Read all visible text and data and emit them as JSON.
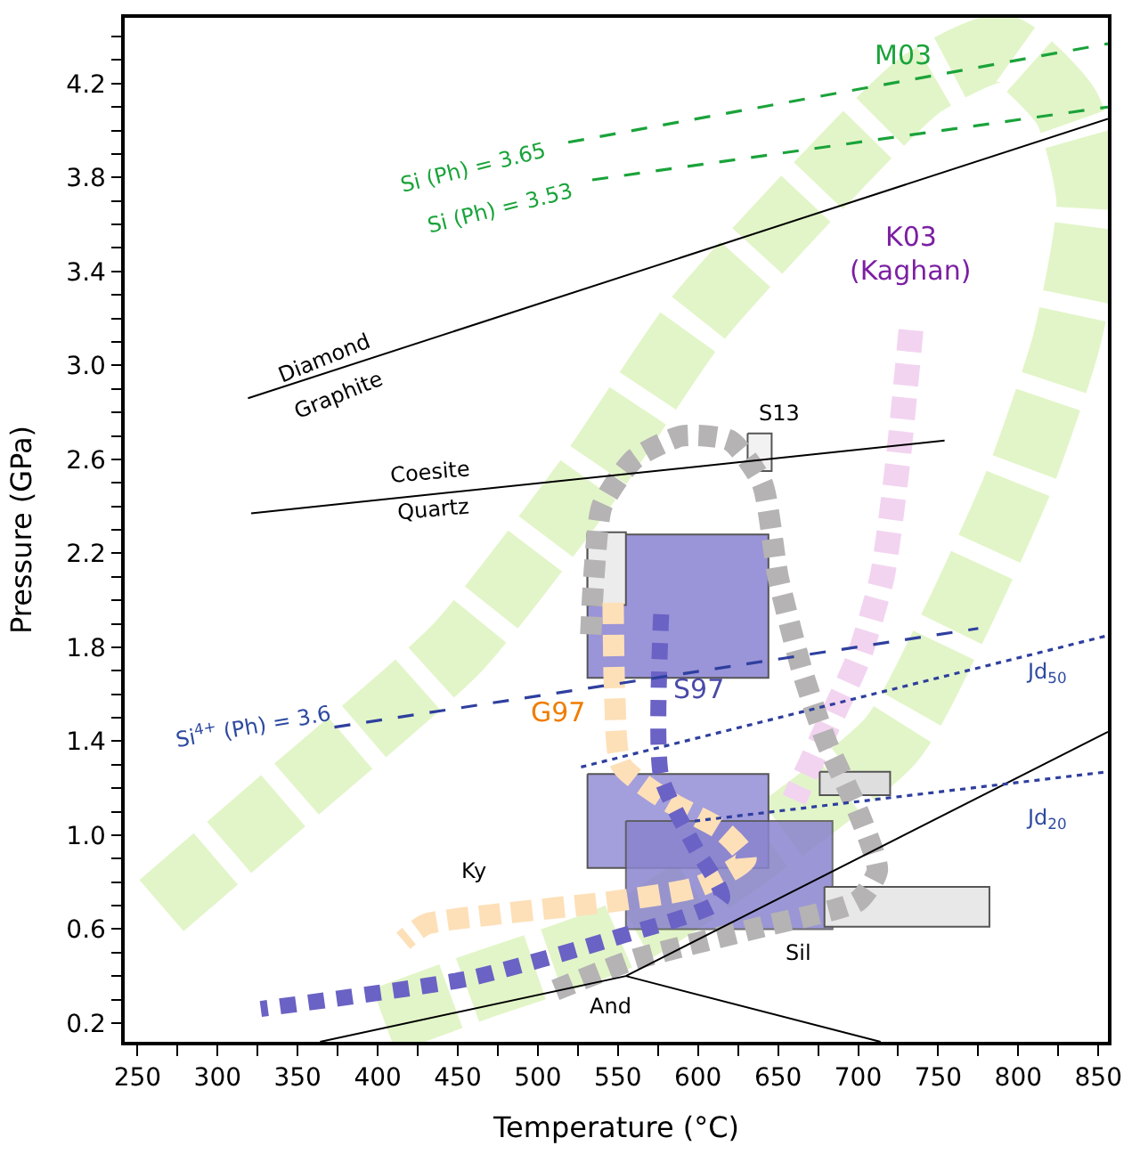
{
  "chart_data": {
    "type": "line",
    "xlabel": "Temperature (°C)",
    "ylabel": "Pressure (GPa)",
    "xlim": [
      242,
      856
    ],
    "ylim": [
      0.12,
      4.48
    ],
    "xticks": [
      250,
      {
        "value": 275,
        "label": null
      },
      300,
      {
        "value": 325,
        "label": null
      },
      350,
      {
        "value": 375,
        "label": null
      },
      400,
      {
        "value": 425,
        "label": null
      },
      450,
      {
        "value": 475,
        "label": null
      },
      500,
      {
        "value": 525,
        "label": null
      },
      550,
      {
        "value": 575,
        "label": null
      },
      600,
      {
        "value": 625,
        "label": null
      },
      650,
      {
        "value": 675,
        "label": null
      },
      700,
      {
        "value": 725,
        "label": null
      },
      750,
      {
        "value": 775,
        "label": null
      },
      800,
      {
        "value": 825,
        "label": null
      },
      850
    ],
    "yticks": [
      0.2,
      {
        "value": 0.3,
        "label": null
      },
      {
        "value": 0.4,
        "label": null
      },
      {
        "value": 0.5,
        "label": null
      },
      0.6,
      {
        "value": 0.7,
        "label": null
      },
      {
        "value": 0.8,
        "label": null
      },
      {
        "value": 0.9,
        "label": null
      },
      {
        "value": 1.0,
        "label": "1.0"
      },
      {
        "value": 1.1,
        "label": null
      },
      {
        "value": 1.2,
        "label": null
      },
      {
        "value": 1.3,
        "label": null
      },
      1.4,
      {
        "value": 1.5,
        "label": null
      },
      {
        "value": 1.6,
        "label": null
      },
      {
        "value": 1.7,
        "label": null
      },
      1.8,
      {
        "value": 1.9,
        "label": null
      },
      {
        "value": 2.0,
        "label": null
      },
      {
        "value": 2.1,
        "label": null
      },
      2.2,
      {
        "value": 2.3,
        "label": null
      },
      {
        "value": 2.4,
        "label": null
      },
      {
        "value": 2.5,
        "label": null
      },
      2.6,
      {
        "value": 2.7,
        "label": null
      },
      {
        "value": 2.8,
        "label": null
      },
      {
        "value": 2.9,
        "label": null
      },
      {
        "value": 3.0,
        "label": "3.0"
      },
      {
        "value": 3.1,
        "label": null
      },
      {
        "value": 3.2,
        "label": null
      },
      {
        "value": 3.3,
        "label": null
      },
      3.4,
      {
        "value": 3.5,
        "label": null
      },
      {
        "value": 3.6,
        "label": null
      },
      {
        "value": 3.7,
        "label": null
      },
      3.8,
      {
        "value": 3.9,
        "label": null
      },
      {
        "value": 4.0,
        "label": null
      },
      {
        "value": 4.1,
        "label": null
      },
      4.2,
      {
        "value": 4.3,
        "label": null
      },
      {
        "value": 4.4,
        "label": null
      }
    ],
    "series": [
      {
        "line_style": "dashed",
        "color": "#e2f5c8",
        "x": [
          265,
          350,
          450,
          530,
          600,
          680,
          740,
          790,
          830,
          845,
          830,
          800,
          760,
          720,
          560,
          460,
          400
        ],
        "values": [
          0.7,
          1.2,
          1.8,
          2.5,
          3.2,
          3.8,
          4.2,
          4.35,
          4.1,
          3.7,
          3.1,
          2.5,
          1.9,
          1.4,
          0.6,
          0.35,
          0.2
        ]
      },
      {
        "line_style": "dashed",
        "color": "#f2d4f0",
        "x": [
          733,
          725,
          715,
          700,
          680,
          660
        ],
        "values": [
          3.15,
          2.6,
          2.1,
          1.75,
          1.45,
          1.15
        ]
      },
      {
        "type": "area",
        "color": "#9a94d8",
        "x": [
          531,
          644,
          644,
          531,
          531
        ],
        "values": [
          2.28,
          2.28,
          1.67,
          1.67,
          2.28
        ]
      },
      {
        "type": "area",
        "color": "#a39edc",
        "x": [
          531,
          644,
          644,
          531,
          531
        ],
        "values": [
          1.26,
          1.26,
          0.86,
          0.86,
          1.26
        ]
      },
      {
        "type": "area",
        "color": "#8a84cf",
        "x": [
          555,
          684,
          684,
          555,
          555
        ],
        "values": [
          1.06,
          1.06,
          0.6,
          0.6,
          1.06
        ]
      },
      {
        "type": "area",
        "color": "#ececec",
        "x": [
          531,
          555,
          555,
          531,
          531
        ],
        "values": [
          2.29,
          2.29,
          1.98,
          1.98,
          2.29
        ]
      },
      {
        "type": "area",
        "color": "#f2f2f2",
        "x": [
          631,
          646,
          646,
          631,
          631
        ],
        "values": [
          2.71,
          2.71,
          2.55,
          2.55,
          2.71
        ]
      },
      {
        "type": "area",
        "color": "#dedede",
        "x": [
          676,
          720,
          720,
          676,
          676
        ],
        "values": [
          1.27,
          1.27,
          1.17,
          1.17,
          1.27
        ]
      },
      {
        "type": "area",
        "color": "#e8e8e8",
        "x": [
          679,
          782,
          782,
          679,
          679
        ],
        "values": [
          0.78,
          0.78,
          0.61,
          0.61,
          0.78
        ]
      },
      {
        "line_style": "dashed",
        "color": "#b5b3b3",
        "x": [
          511,
          560,
          640,
          700,
          712,
          700,
          680,
          665,
          650,
          640,
          620,
          590,
          560,
          540,
          535,
          533
        ],
        "values": [
          0.34,
          0.47,
          0.61,
          0.72,
          0.85,
          1.1,
          1.4,
          1.7,
          2.1,
          2.5,
          2.68,
          2.7,
          2.6,
          2.4,
          2.1,
          1.85
        ]
      },
      {
        "line_style": "dashed",
        "color": "#fde0b8",
        "x": [
          547,
          548,
          552,
          580,
          615,
          630,
          600,
          550,
          470,
          430,
          416
        ],
        "values": [
          1.99,
          1.6,
          1.3,
          1.15,
          1.02,
          0.9,
          0.78,
          0.72,
          0.66,
          0.62,
          0.55
        ]
      },
      {
        "line_style": "dashed",
        "color": "#6a62c4",
        "x": [
          577,
          577,
          598,
          615,
          547,
          457,
          327
        ],
        "values": [
          1.94,
          1.25,
          0.95,
          0.73,
          0.56,
          0.39,
          0.26
        ]
      },
      {
        "line_style": "solid",
        "color": "#000000",
        "x": [
          319,
          856
        ],
        "values": [
          2.86,
          4.05
        ]
      },
      {
        "line_style": "solid",
        "color": "#000000",
        "x": [
          321,
          754
        ],
        "values": [
          2.37,
          2.68
        ]
      },
      {
        "line_style": "solid",
        "color": "#000000",
        "x": [
          364,
          555,
          856
        ],
        "values": [
          0.12,
          0.4,
          1.44
        ]
      },
      {
        "line_style": "solid",
        "color": "#000000",
        "x": [
          555,
          714
        ],
        "values": [
          0.4,
          0.12
        ]
      },
      {
        "line_style": "dashed",
        "color": "#1aa33a",
        "x": [
          519,
          856
        ],
        "values": [
          3.95,
          4.37
        ]
      },
      {
        "line_style": "dashed",
        "color": "#1aa33a",
        "x": [
          534,
          856
        ],
        "values": [
          3.79,
          4.1
        ]
      },
      {
        "line_style": "dashed",
        "color": "#2e3f9e",
        "x": [
          373,
          775
        ],
        "values": [
          1.46,
          1.88
        ]
      },
      {
        "line_style": "dotted",
        "color": "#2e3f9e",
        "x": [
          527,
          856
        ],
        "values": [
          1.29,
          1.85
        ]
      },
      {
        "line_style": "dotted",
        "color": "#2e3f9e",
        "x": [
          598,
          856
        ],
        "values": [
          1.06,
          1.27
        ]
      }
    ],
    "annotations": [
      "M03",
      "Si (Ph) = 3.65",
      "Si (Ph) = 3.53",
      "K03",
      "(Kaghan)",
      "Diamond",
      "Graphite",
      "S13",
      "Coesite",
      "Quartz",
      "G97",
      "S97",
      "Si$^{4+}$ (Ph) = 3.6",
      "Jd$_{50}$",
      "Jd$_{20}$",
      "Ky",
      "Sil",
      "And"
    ]
  }
}
